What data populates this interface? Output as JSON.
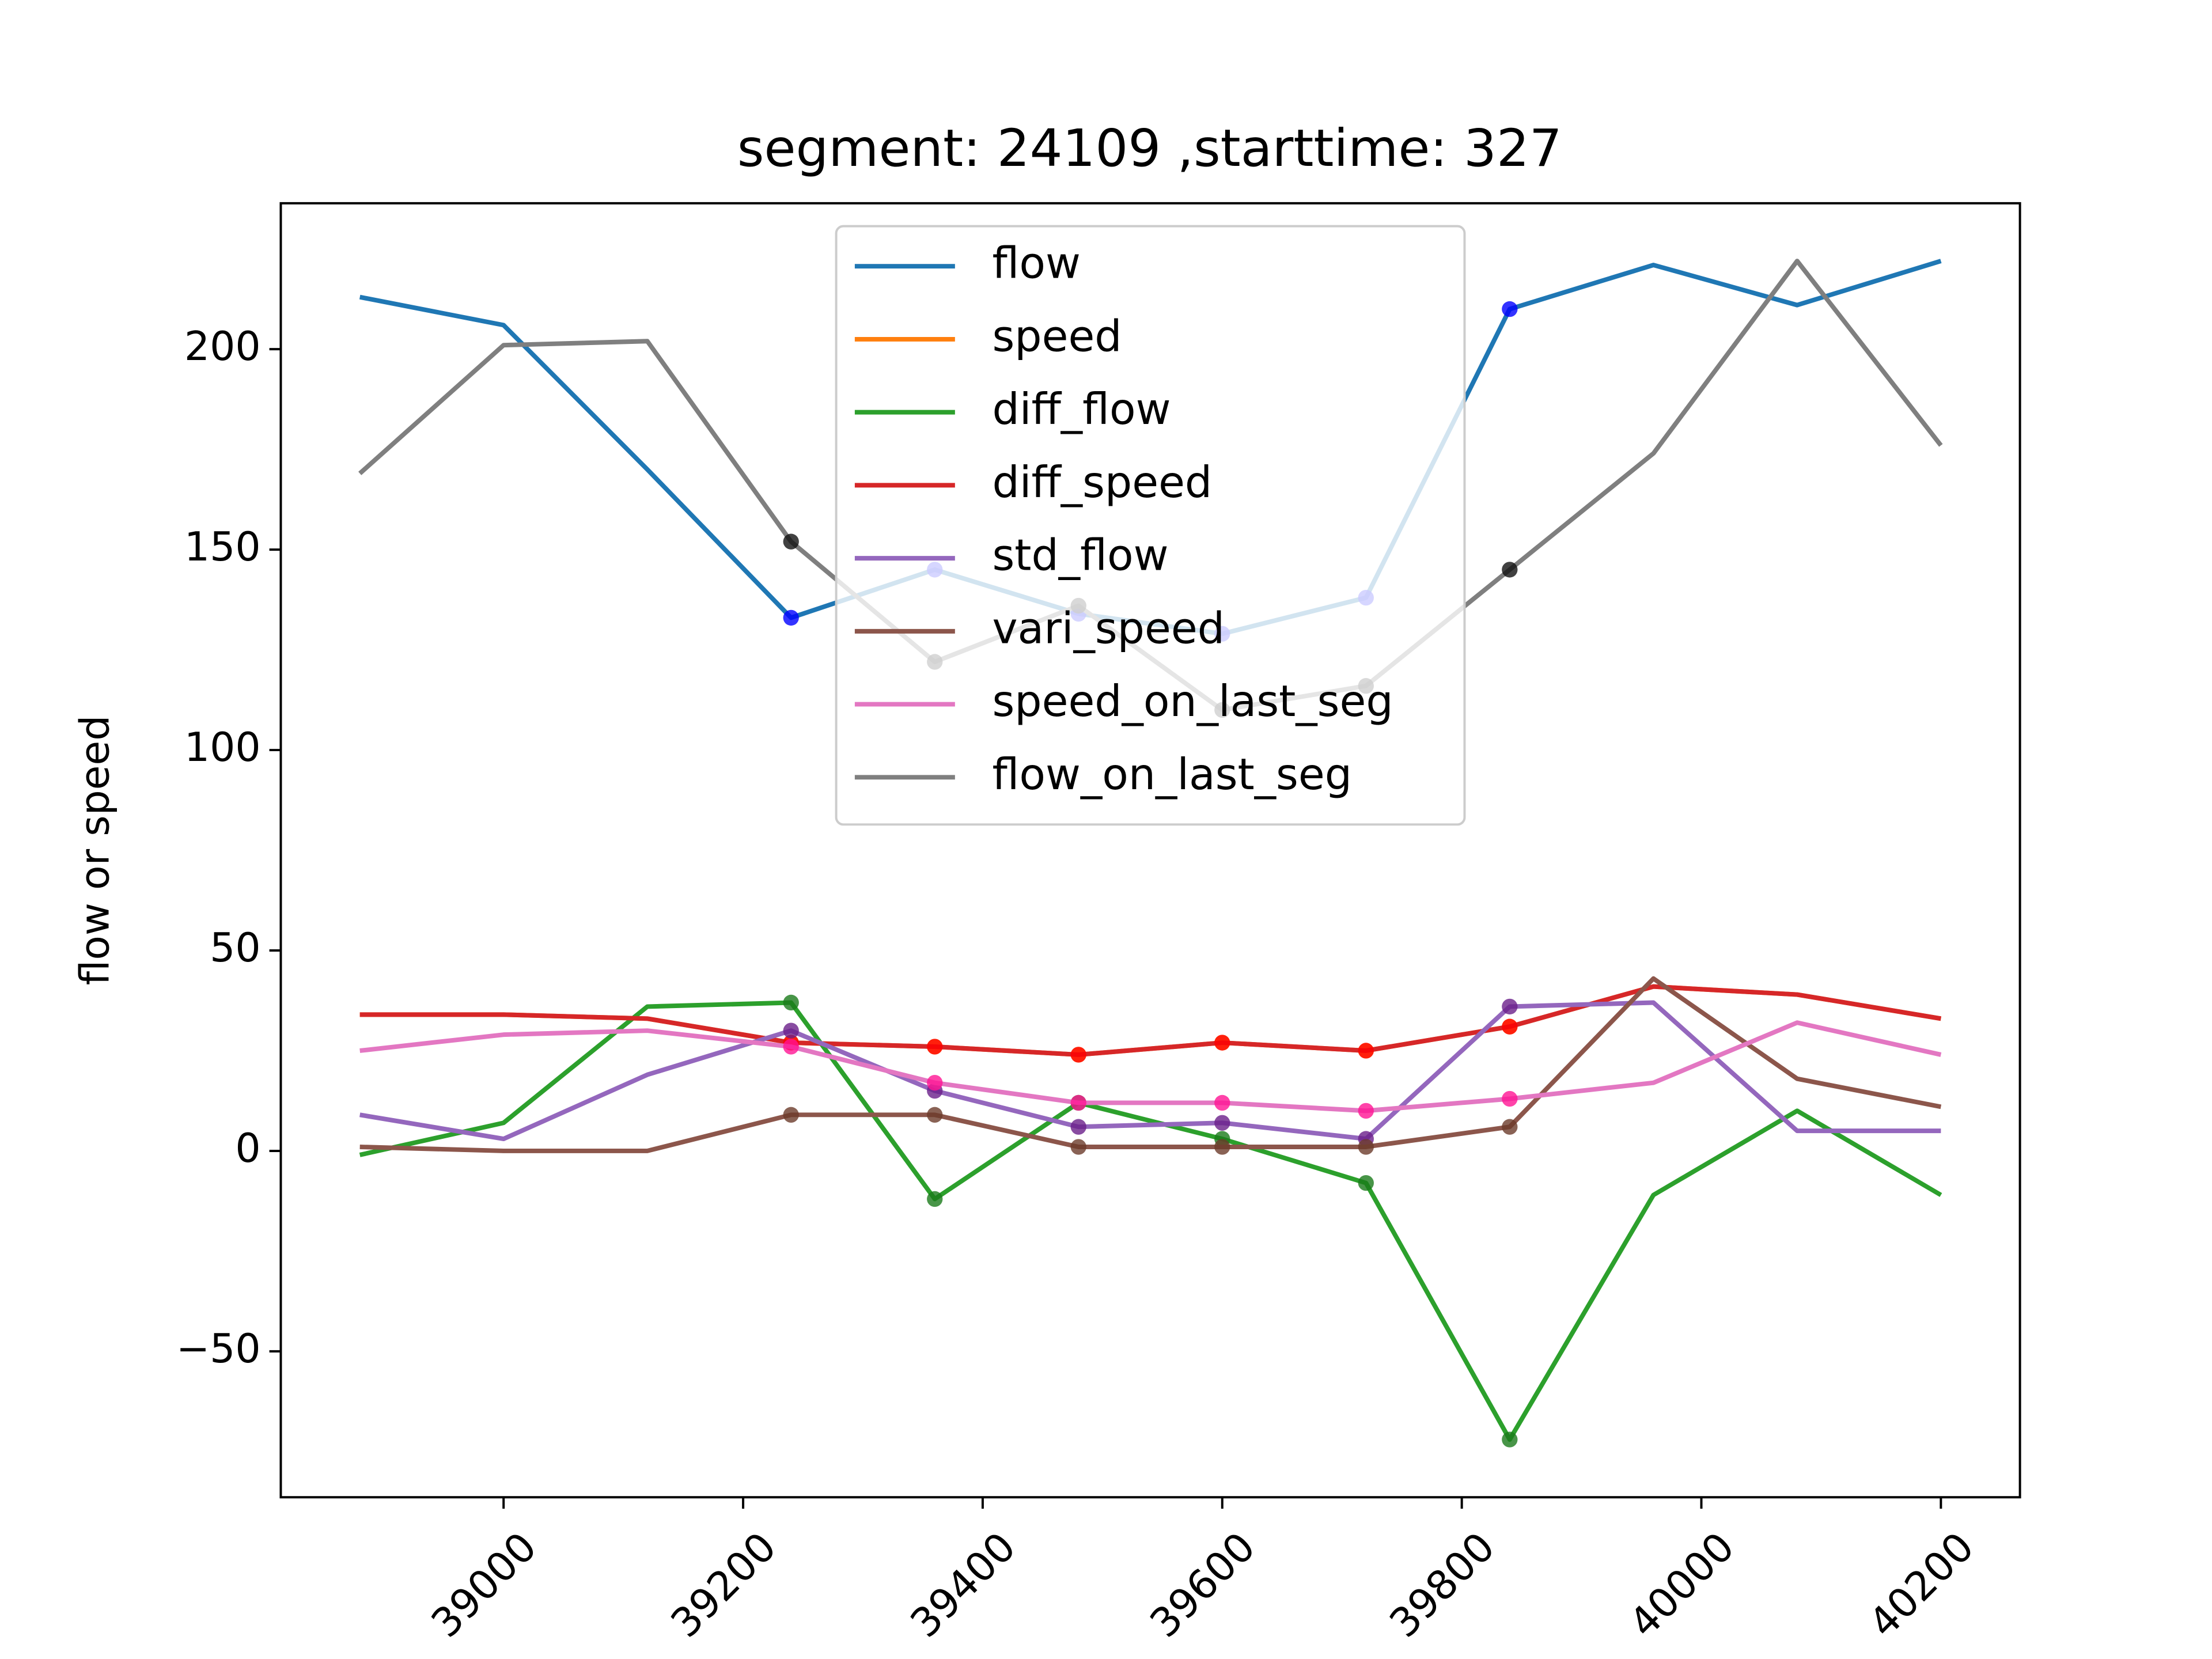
{
  "chart_data": {
    "type": "line",
    "title": "segment: 24109 ,starttime: 327",
    "ylabel": "flow or speed",
    "x": [
      38880,
      39000,
      39120,
      39240,
      39360,
      39480,
      39600,
      39720,
      39840,
      39960,
      40080,
      40200
    ],
    "xlim": [
      38814,
      40266
    ],
    "xticks": [
      39000,
      39200,
      39400,
      39600,
      39800,
      40000,
      40200
    ],
    "ylim": [
      -86.4,
      236.4
    ],
    "yticks": [
      {
        "value": -50,
        "label": "−50"
      },
      0,
      50,
      100,
      150,
      200
    ],
    "highlight_x": [
      39240,
      39840
    ],
    "legend": "upper center",
    "series": [
      {
        "name": "flow",
        "color": "#1f77b4",
        "marker_color": "#0000ff",
        "values": [
          213,
          206,
          170,
          133,
          145,
          134,
          129,
          138,
          210,
          221,
          211,
          222
        ]
      },
      {
        "name": "speed",
        "color": "#ff7f0e",
        "marker_color": "#ff7f0e",
        "values": [
          34,
          34,
          33,
          27,
          26,
          24,
          27,
          25,
          31,
          41,
          39,
          33
        ]
      },
      {
        "name": "diff_flow",
        "color": "#2ca02c",
        "marker_color": "#1a7a1a",
        "values": [
          -1,
          7,
          36,
          37,
          -12,
          12,
          3,
          -8,
          -72,
          -11,
          10,
          -11
        ]
      },
      {
        "name": "diff_speed",
        "color": "#d62728",
        "marker_color": "#ff0000",
        "values": [
          34,
          34,
          33,
          27,
          26,
          24,
          27,
          25,
          31,
          41,
          39,
          33
        ]
      },
      {
        "name": "std_flow",
        "color": "#9467bd",
        "marker_color": "#6a1f8a",
        "values": [
          9,
          3,
          19,
          30,
          15,
          6,
          7,
          3,
          36,
          37,
          5,
          5
        ]
      },
      {
        "name": "vari_speed",
        "color": "#8c564b",
        "marker_color": "#6b3b2b",
        "values": [
          1,
          0,
          0,
          9,
          9,
          1,
          1,
          1,
          6,
          43,
          18,
          11
        ]
      },
      {
        "name": "speed_on_last_seg",
        "color": "#e377c2",
        "marker_color": "#ff1493",
        "values": [
          25,
          29,
          30,
          26,
          17,
          12,
          12,
          10,
          13,
          17,
          32,
          24
        ]
      },
      {
        "name": "flow_on_last_seg",
        "color": "#7f7f7f",
        "marker_color": "#111111",
        "values": [
          169,
          201,
          202,
          152,
          122,
          136,
          110,
          116,
          145,
          174,
          222,
          176
        ]
      }
    ]
  }
}
